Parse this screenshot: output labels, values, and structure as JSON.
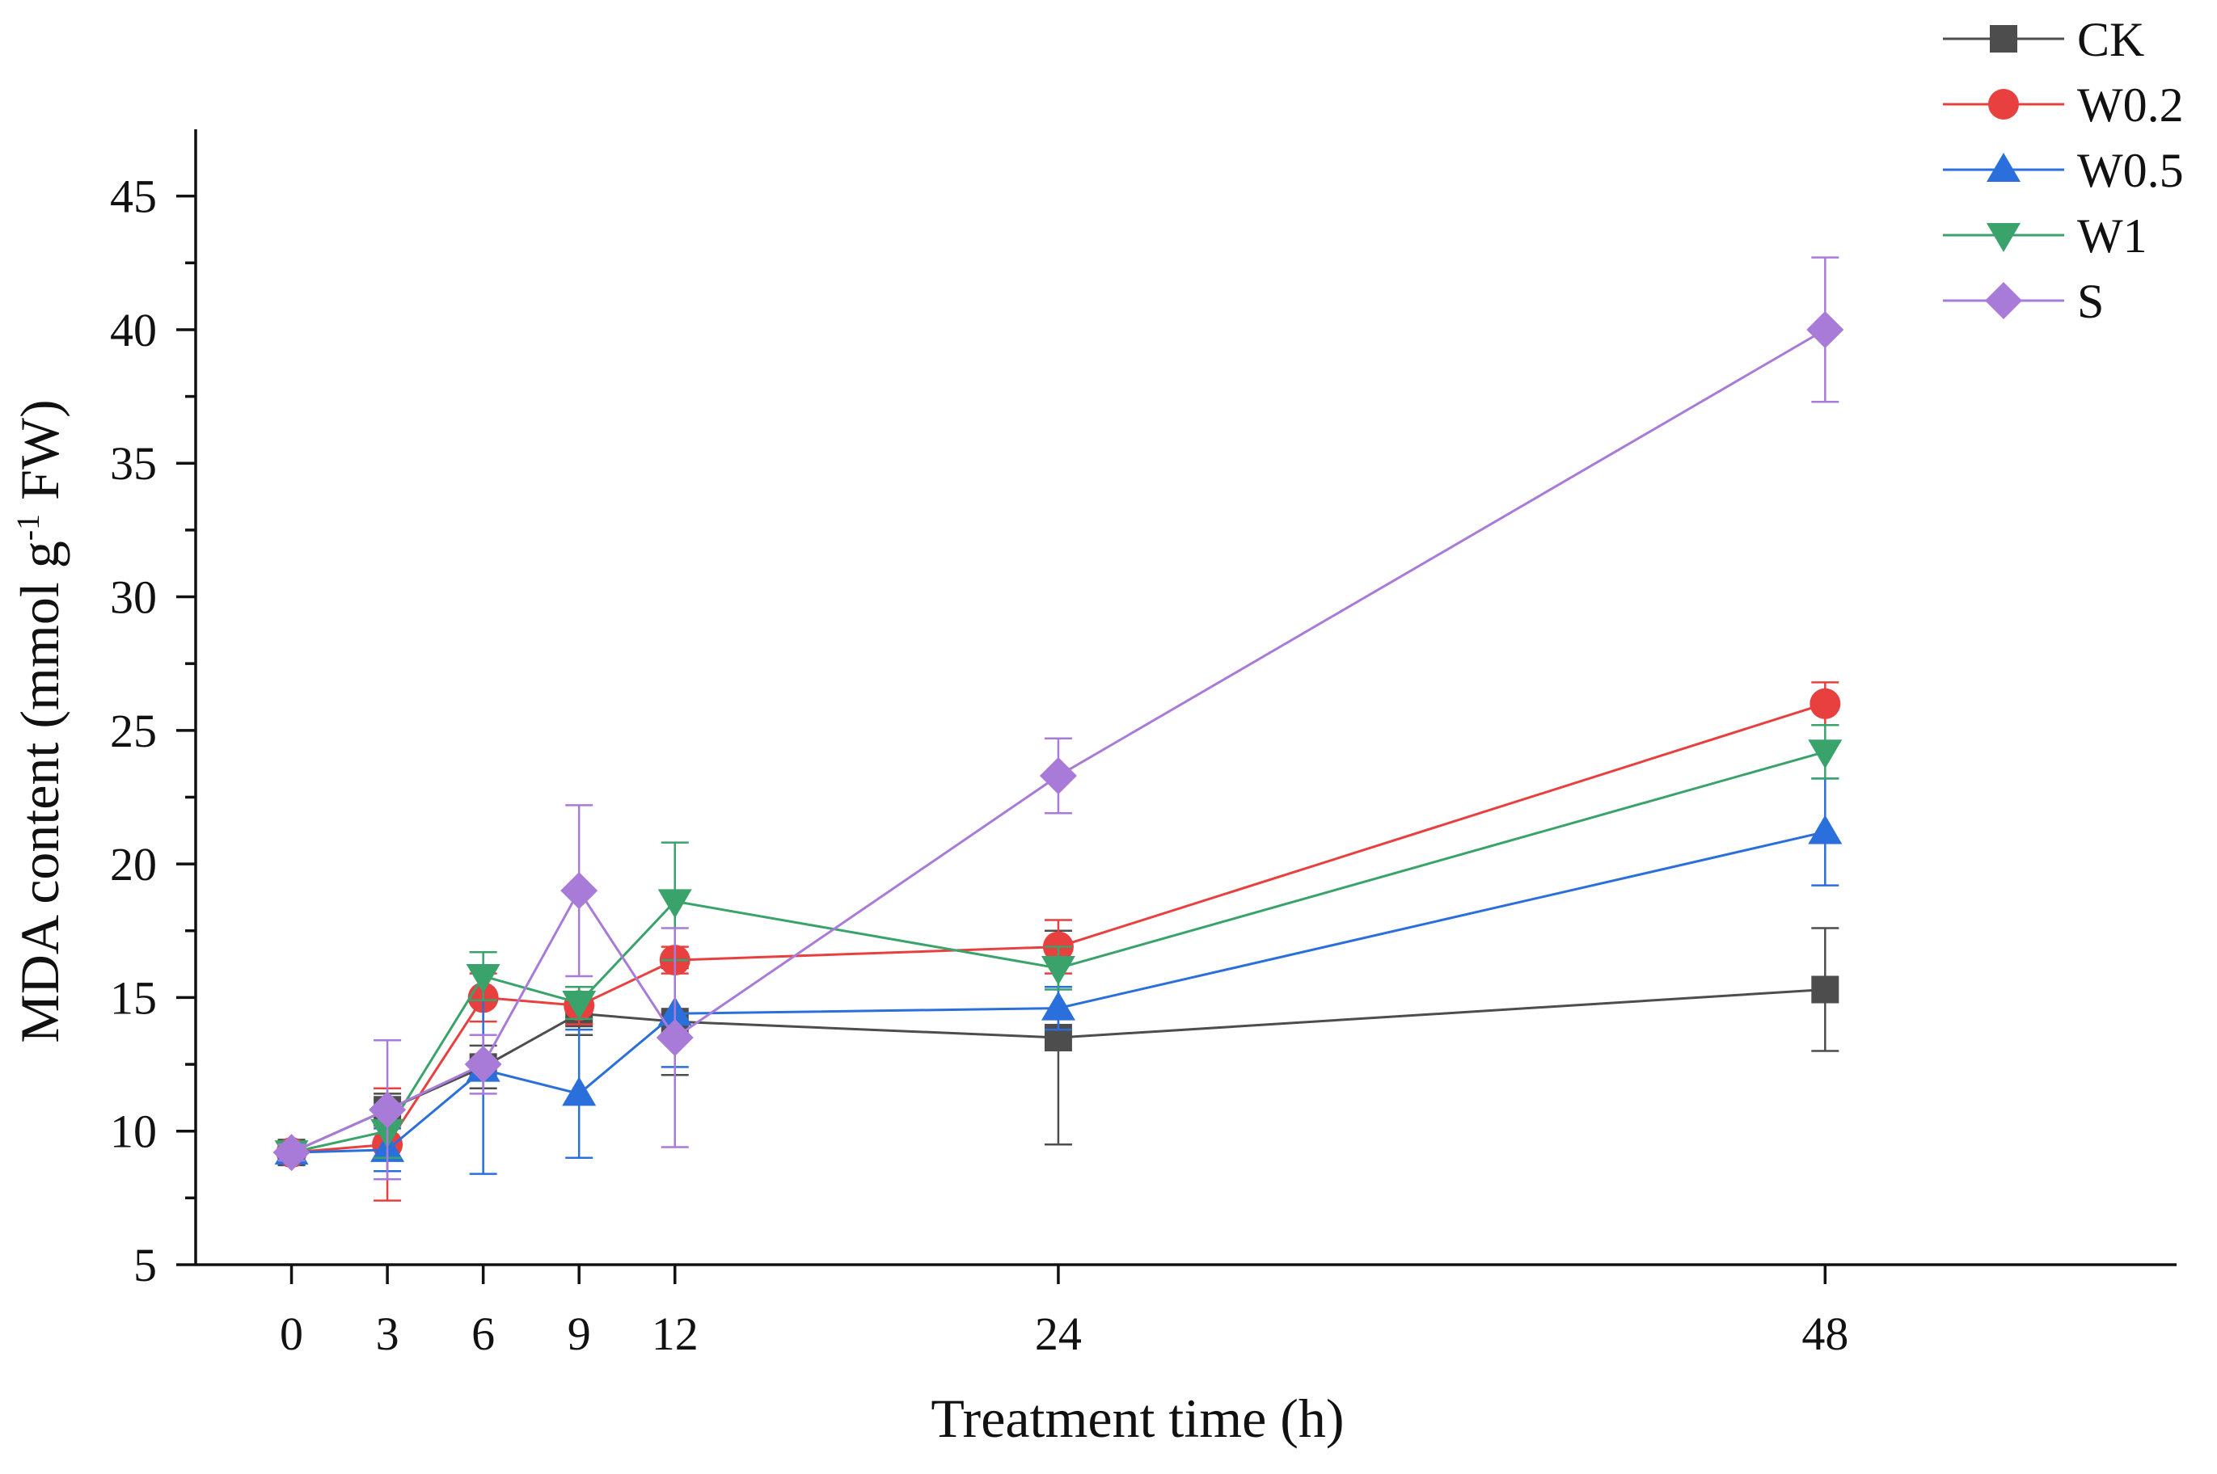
{
  "chart_data": {
    "type": "line",
    "title": "",
    "xlabel": "Treatment time (h)",
    "ylabel_main": "MDA content (mmol g",
    "ylabel_sup": "-1",
    "ylabel_tail": " FW)",
    "x": [
      0,
      3,
      6,
      9,
      12,
      24,
      48
    ],
    "x_tick_labels": [
      "0",
      "3",
      "6",
      "9",
      "12",
      "24",
      "48"
    ],
    "xlim": [
      -3,
      59
    ],
    "ylim": [
      5,
      47.5
    ],
    "y_ticks": [
      5,
      10,
      15,
      20,
      25,
      30,
      35,
      40,
      45
    ],
    "y_tick_labels": [
      "5",
      "10",
      "15",
      "20",
      "25",
      "30",
      "35",
      "40",
      "45"
    ],
    "legend_position": "top-right",
    "series": [
      {
        "name": "CK",
        "color": "#4d4d4d",
        "marker": "square",
        "values": [
          9.2,
          10.8,
          12.4,
          14.4,
          14.1,
          13.5,
          15.3
        ],
        "errors": [
          0.4,
          0.6,
          0.8,
          0.8,
          2.0,
          4.0,
          2.3
        ]
      },
      {
        "name": "W0.2",
        "color": "#e8403f",
        "marker": "circle",
        "values": [
          9.2,
          9.5,
          15.0,
          14.7,
          16.4,
          16.9,
          26.0
        ],
        "errors": [
          0.3,
          2.1,
          0.9,
          0.7,
          0.5,
          1.0,
          0.8
        ]
      },
      {
        "name": "W0.5",
        "color": "#2a6fdb",
        "marker": "triangle-up",
        "values": [
          9.2,
          9.3,
          12.3,
          11.4,
          14.4,
          14.6,
          21.2
        ],
        "errors": [
          0.3,
          0.8,
          3.9,
          2.4,
          2.0,
          0.8,
          2.0
        ]
      },
      {
        "name": "W1",
        "color": "#3aa36b",
        "marker": "triangle-down",
        "values": [
          9.2,
          10.0,
          15.8,
          14.8,
          18.6,
          16.1,
          24.2
        ],
        "errors": [
          0.3,
          1.0,
          0.9,
          0.6,
          2.2,
          0.8,
          1.0
        ]
      },
      {
        "name": "S",
        "color": "#a97bd9",
        "marker": "diamond",
        "values": [
          9.2,
          10.8,
          12.5,
          19.0,
          13.5,
          23.3,
          40.0
        ],
        "errors": [
          0.3,
          2.6,
          1.1,
          3.2,
          4.1,
          1.4,
          2.7
        ]
      }
    ]
  }
}
